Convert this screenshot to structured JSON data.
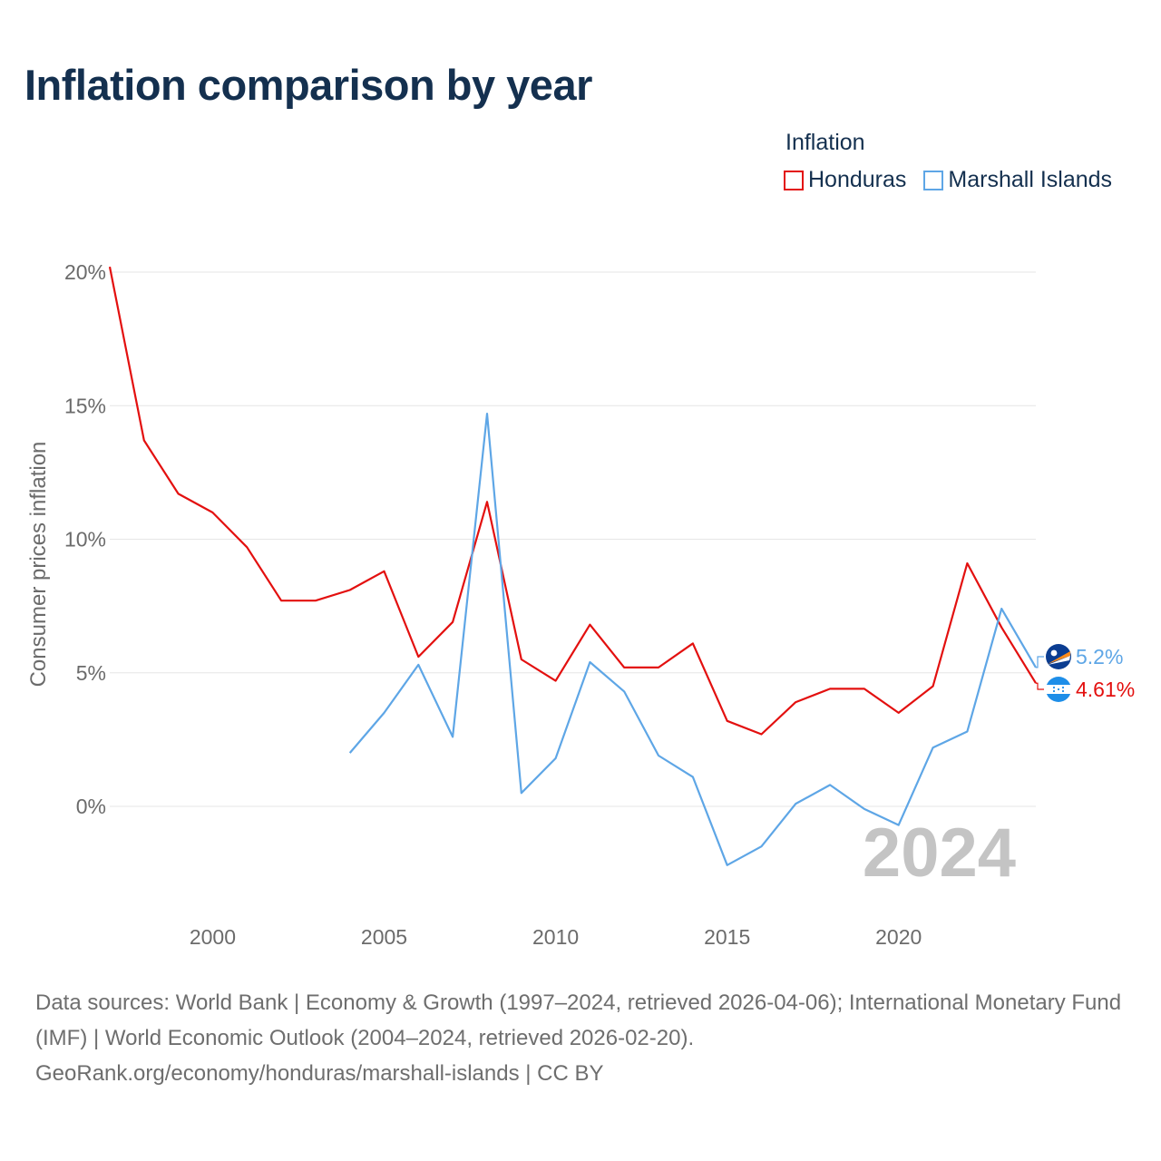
{
  "title": "Inflation comparison by year",
  "legend": {
    "title": "Inflation",
    "items": [
      {
        "label": "Honduras",
        "color": "#e3100f"
      },
      {
        "label": "Marshall Islands",
        "color": "#5ea6e6"
      }
    ]
  },
  "source": {
    "line1": "Data sources: World Bank | Economy & Growth (1997–2024, retrieved 2026-04-06); International Monetary Fund (IMF) | World Economic Outlook (2004–2024, retrieved 2026-02-20).",
    "line2": "GeoRank.org/economy/honduras/marshall-islands | CC BY"
  },
  "chart_data": {
    "type": "line",
    "title": "Inflation comparison by year",
    "xlabel": "",
    "ylabel": "Consumer prices inflation",
    "xlim": [
      1997,
      2024
    ],
    "ylim": [
      -4,
      20
    ],
    "x_ticks": [
      2000,
      2005,
      2010,
      2015,
      2020
    ],
    "y_ticks": [
      {
        "value": 0,
        "label": "0%"
      },
      {
        "value": 5,
        "label": "5%"
      },
      {
        "value": 10,
        "label": "10%"
      },
      {
        "value": 15,
        "label": "15%"
      },
      {
        "value": 20,
        "label": "20%"
      }
    ],
    "grid": true,
    "legend_position": "top-right",
    "current_year": "2024",
    "series": [
      {
        "name": "Honduras",
        "color": "#e3100f",
        "end_label": "4.61%",
        "flag": "honduras-flag-icon",
        "x": [
          1997,
          1998,
          1999,
          2000,
          2001,
          2002,
          2003,
          2004,
          2005,
          2006,
          2007,
          2008,
          2009,
          2010,
          2011,
          2012,
          2013,
          2014,
          2015,
          2016,
          2017,
          2018,
          2019,
          2020,
          2021,
          2022,
          2023,
          2024
        ],
        "values": [
          20.2,
          13.7,
          11.7,
          11.0,
          9.7,
          7.7,
          7.7,
          8.1,
          8.8,
          5.6,
          6.9,
          11.4,
          5.5,
          4.7,
          6.8,
          5.2,
          5.2,
          6.1,
          3.2,
          2.7,
          3.9,
          4.4,
          4.4,
          3.5,
          4.5,
          9.1,
          6.7,
          4.61
        ]
      },
      {
        "name": "Marshall Islands",
        "color": "#5ea6e6",
        "end_label": "5.2%",
        "flag": "marshall-islands-flag-icon",
        "x": [
          2004,
          2005,
          2006,
          2007,
          2008,
          2009,
          2010,
          2011,
          2012,
          2013,
          2014,
          2015,
          2016,
          2017,
          2018,
          2019,
          2020,
          2021,
          2022,
          2023,
          2024
        ],
        "values": [
          2.0,
          3.5,
          5.3,
          2.6,
          14.7,
          0.5,
          1.8,
          5.4,
          4.3,
          1.9,
          1.1,
          -2.2,
          -1.5,
          0.1,
          0.8,
          -0.1,
          -0.7,
          2.2,
          2.8,
          7.4,
          5.2
        ]
      }
    ]
  }
}
